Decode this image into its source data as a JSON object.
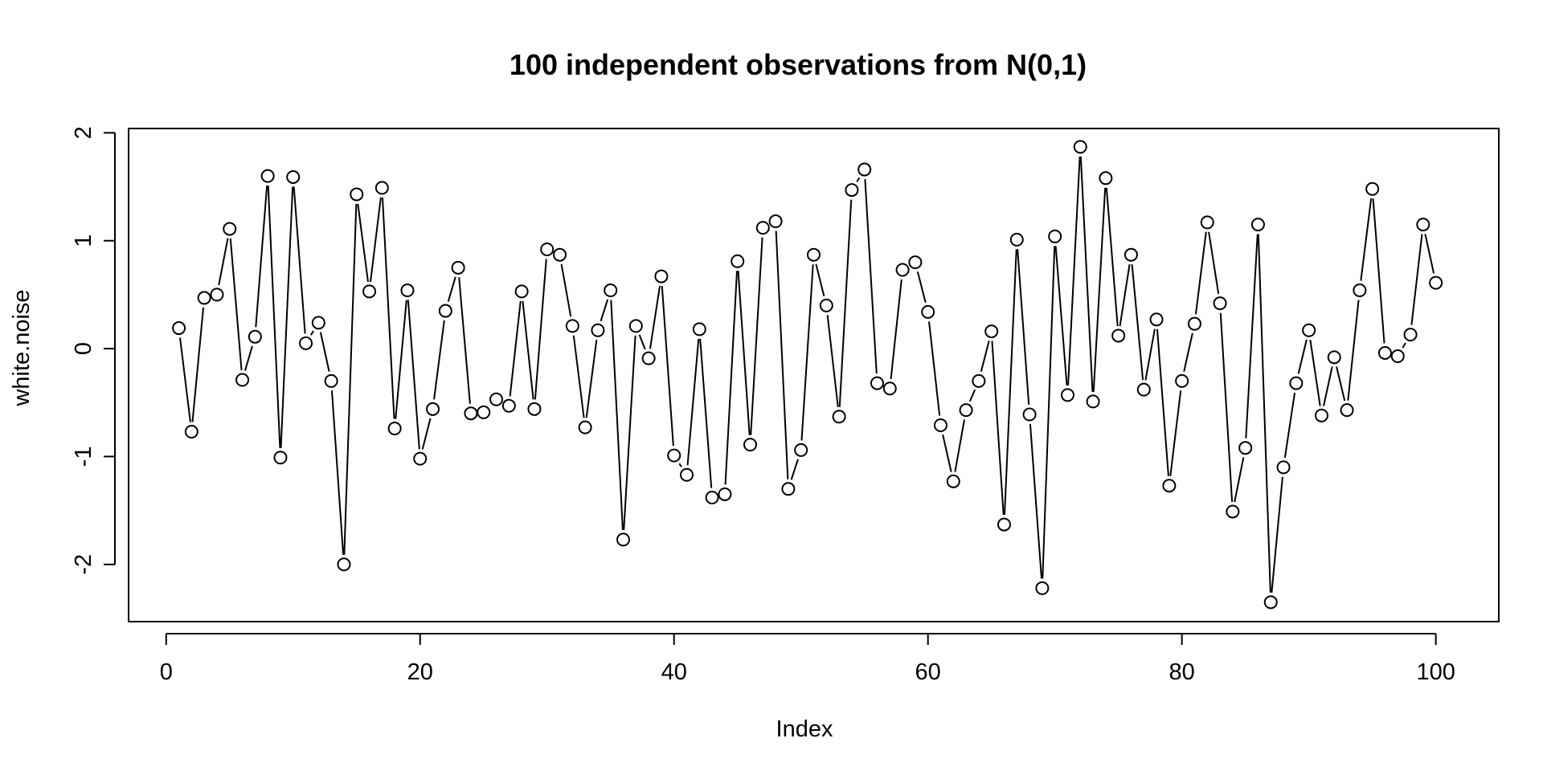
{
  "chart_data": {
    "type": "line",
    "plot_style": "b",
    "title": "100 independent observations from N(0,1)",
    "xlabel": "Index",
    "ylabel": "white.noise",
    "xlim": [
      -2.96,
      104.96
    ],
    "ylim": [
      -2.53,
      2.04
    ],
    "xticks": [
      0,
      20,
      40,
      60,
      80,
      100
    ],
    "yticks": [
      -2,
      -1,
      0,
      1,
      2
    ],
    "grid": false,
    "series": [
      {
        "color": "#000000",
        "x": [
          1,
          2,
          3,
          4,
          5,
          6,
          7,
          8,
          9,
          10,
          11,
          12,
          13,
          14,
          15,
          16,
          17,
          18,
          19,
          20,
          21,
          22,
          23,
          24,
          25,
          26,
          27,
          28,
          29,
          30,
          31,
          32,
          33,
          34,
          35,
          36,
          37,
          38,
          39,
          40,
          41,
          42,
          43,
          44,
          45,
          46,
          47,
          48,
          49,
          50,
          51,
          52,
          53,
          54,
          55,
          56,
          57,
          58,
          59,
          60,
          61,
          62,
          63,
          64,
          65,
          66,
          67,
          68,
          69,
          70,
          71,
          72,
          73,
          74,
          75,
          76,
          77,
          78,
          79,
          80,
          81,
          82,
          83,
          84,
          85,
          86,
          87,
          88,
          89,
          90,
          91,
          92,
          93,
          94,
          95,
          96,
          97,
          98,
          99,
          100
        ],
        "y": [
          0.19,
          -0.77,
          0.47,
          0.5,
          1.11,
          -0.29,
          0.11,
          1.6,
          -1.01,
          1.59,
          0.05,
          0.24,
          -0.3,
          -2.0,
          1.43,
          0.53,
          1.49,
          -0.74,
          0.54,
          -1.02,
          -0.56,
          0.35,
          0.75,
          -0.6,
          -0.59,
          -0.47,
          -0.53,
          0.53,
          -0.56,
          0.92,
          0.87,
          0.21,
          -0.73,
          0.17,
          0.54,
          -1.77,
          0.21,
          -0.09,
          0.67,
          -0.99,
          -1.17,
          0.18,
          -1.38,
          -1.35,
          0.81,
          -0.89,
          1.12,
          1.18,
          -1.3,
          -0.94,
          0.87,
          0.4,
          -0.63,
          1.47,
          1.66,
          -0.32,
          -0.37,
          0.73,
          0.8,
          0.34,
          -0.71,
          -1.23,
          -0.57,
          -0.3,
          0.16,
          -1.63,
          1.01,
          -0.61,
          -2.22,
          1.04,
          -0.43,
          1.87,
          -0.49,
          1.58,
          0.12,
          0.87,
          -0.38,
          0.27,
          -1.27,
          -0.3,
          0.23,
          1.17,
          0.42,
          -1.51,
          -0.92,
          1.15,
          -2.35,
          -1.1,
          -0.32,
          0.17,
          -0.62,
          -0.08,
          -0.57,
          0.54,
          1.48,
          -0.04,
          -0.07,
          0.13,
          1.15,
          0.61
        ]
      }
    ]
  }
}
